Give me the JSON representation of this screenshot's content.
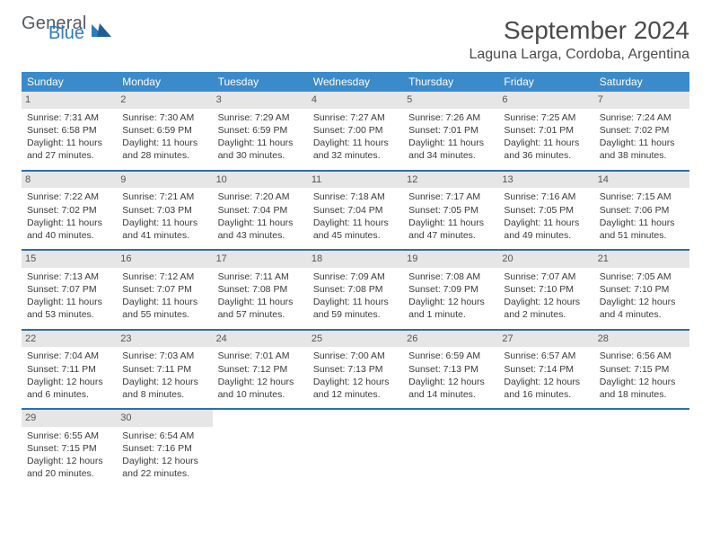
{
  "logo": {
    "word1": "General",
    "word2": "Blue",
    "color_general": "#555a5f",
    "color_blue": "#2d7cc0"
  },
  "title": "September 2024",
  "location": "Laguna Larga, Cordoba, Argentina",
  "weekday_labels": [
    "Sunday",
    "Monday",
    "Tuesday",
    "Wednesday",
    "Thursday",
    "Friday",
    "Saturday"
  ],
  "header_bg": "#3b8aca",
  "header_fg": "#ffffff",
  "daynum_bg": "#e6e6e6",
  "row_divider_color": "#2e6ea8",
  "text_color": "#3a3a3a",
  "body_fontsize": 10.5,
  "header_fontsize": 12,
  "title_fontsize": 28,
  "location_fontsize": 16,
  "weeks": [
    [
      {
        "day": "1",
        "sunrise": "Sunrise: 7:31 AM",
        "sunset": "Sunset: 6:58 PM",
        "daylight": "Daylight: 11 hours and 27 minutes."
      },
      {
        "day": "2",
        "sunrise": "Sunrise: 7:30 AM",
        "sunset": "Sunset: 6:59 PM",
        "daylight": "Daylight: 11 hours and 28 minutes."
      },
      {
        "day": "3",
        "sunrise": "Sunrise: 7:29 AM",
        "sunset": "Sunset: 6:59 PM",
        "daylight": "Daylight: 11 hours and 30 minutes."
      },
      {
        "day": "4",
        "sunrise": "Sunrise: 7:27 AM",
        "sunset": "Sunset: 7:00 PM",
        "daylight": "Daylight: 11 hours and 32 minutes."
      },
      {
        "day": "5",
        "sunrise": "Sunrise: 7:26 AM",
        "sunset": "Sunset: 7:01 PM",
        "daylight": "Daylight: 11 hours and 34 minutes."
      },
      {
        "day": "6",
        "sunrise": "Sunrise: 7:25 AM",
        "sunset": "Sunset: 7:01 PM",
        "daylight": "Daylight: 11 hours and 36 minutes."
      },
      {
        "day": "7",
        "sunrise": "Sunrise: 7:24 AM",
        "sunset": "Sunset: 7:02 PM",
        "daylight": "Daylight: 11 hours and 38 minutes."
      }
    ],
    [
      {
        "day": "8",
        "sunrise": "Sunrise: 7:22 AM",
        "sunset": "Sunset: 7:02 PM",
        "daylight": "Daylight: 11 hours and 40 minutes."
      },
      {
        "day": "9",
        "sunrise": "Sunrise: 7:21 AM",
        "sunset": "Sunset: 7:03 PM",
        "daylight": "Daylight: 11 hours and 41 minutes."
      },
      {
        "day": "10",
        "sunrise": "Sunrise: 7:20 AM",
        "sunset": "Sunset: 7:04 PM",
        "daylight": "Daylight: 11 hours and 43 minutes."
      },
      {
        "day": "11",
        "sunrise": "Sunrise: 7:18 AM",
        "sunset": "Sunset: 7:04 PM",
        "daylight": "Daylight: 11 hours and 45 minutes."
      },
      {
        "day": "12",
        "sunrise": "Sunrise: 7:17 AM",
        "sunset": "Sunset: 7:05 PM",
        "daylight": "Daylight: 11 hours and 47 minutes."
      },
      {
        "day": "13",
        "sunrise": "Sunrise: 7:16 AM",
        "sunset": "Sunset: 7:05 PM",
        "daylight": "Daylight: 11 hours and 49 minutes."
      },
      {
        "day": "14",
        "sunrise": "Sunrise: 7:15 AM",
        "sunset": "Sunset: 7:06 PM",
        "daylight": "Daylight: 11 hours and 51 minutes."
      }
    ],
    [
      {
        "day": "15",
        "sunrise": "Sunrise: 7:13 AM",
        "sunset": "Sunset: 7:07 PM",
        "daylight": "Daylight: 11 hours and 53 minutes."
      },
      {
        "day": "16",
        "sunrise": "Sunrise: 7:12 AM",
        "sunset": "Sunset: 7:07 PM",
        "daylight": "Daylight: 11 hours and 55 minutes."
      },
      {
        "day": "17",
        "sunrise": "Sunrise: 7:11 AM",
        "sunset": "Sunset: 7:08 PM",
        "daylight": "Daylight: 11 hours and 57 minutes."
      },
      {
        "day": "18",
        "sunrise": "Sunrise: 7:09 AM",
        "sunset": "Sunset: 7:08 PM",
        "daylight": "Daylight: 11 hours and 59 minutes."
      },
      {
        "day": "19",
        "sunrise": "Sunrise: 7:08 AM",
        "sunset": "Sunset: 7:09 PM",
        "daylight": "Daylight: 12 hours and 1 minute."
      },
      {
        "day": "20",
        "sunrise": "Sunrise: 7:07 AM",
        "sunset": "Sunset: 7:10 PM",
        "daylight": "Daylight: 12 hours and 2 minutes."
      },
      {
        "day": "21",
        "sunrise": "Sunrise: 7:05 AM",
        "sunset": "Sunset: 7:10 PM",
        "daylight": "Daylight: 12 hours and 4 minutes."
      }
    ],
    [
      {
        "day": "22",
        "sunrise": "Sunrise: 7:04 AM",
        "sunset": "Sunset: 7:11 PM",
        "daylight": "Daylight: 12 hours and 6 minutes."
      },
      {
        "day": "23",
        "sunrise": "Sunrise: 7:03 AM",
        "sunset": "Sunset: 7:11 PM",
        "daylight": "Daylight: 12 hours and 8 minutes."
      },
      {
        "day": "24",
        "sunrise": "Sunrise: 7:01 AM",
        "sunset": "Sunset: 7:12 PM",
        "daylight": "Daylight: 12 hours and 10 minutes."
      },
      {
        "day": "25",
        "sunrise": "Sunrise: 7:00 AM",
        "sunset": "Sunset: 7:13 PM",
        "daylight": "Daylight: 12 hours and 12 minutes."
      },
      {
        "day": "26",
        "sunrise": "Sunrise: 6:59 AM",
        "sunset": "Sunset: 7:13 PM",
        "daylight": "Daylight: 12 hours and 14 minutes."
      },
      {
        "day": "27",
        "sunrise": "Sunrise: 6:57 AM",
        "sunset": "Sunset: 7:14 PM",
        "daylight": "Daylight: 12 hours and 16 minutes."
      },
      {
        "day": "28",
        "sunrise": "Sunrise: 6:56 AM",
        "sunset": "Sunset: 7:15 PM",
        "daylight": "Daylight: 12 hours and 18 minutes."
      }
    ],
    [
      {
        "day": "29",
        "sunrise": "Sunrise: 6:55 AM",
        "sunset": "Sunset: 7:15 PM",
        "daylight": "Daylight: 12 hours and 20 minutes."
      },
      {
        "day": "30",
        "sunrise": "Sunrise: 6:54 AM",
        "sunset": "Sunset: 7:16 PM",
        "daylight": "Daylight: 12 hours and 22 minutes."
      },
      {
        "empty": true
      },
      {
        "empty": true
      },
      {
        "empty": true
      },
      {
        "empty": true
      },
      {
        "empty": true
      }
    ]
  ]
}
